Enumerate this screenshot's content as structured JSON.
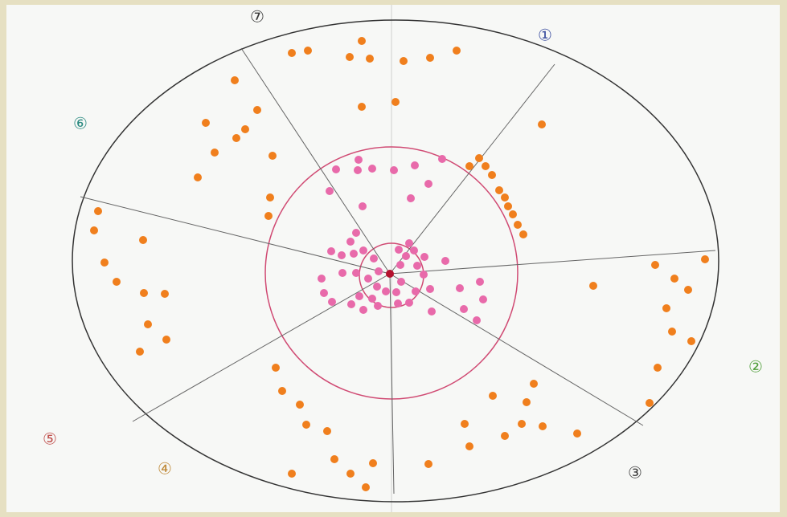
{
  "poster": {
    "section_numbers": [
      "①",
      "②",
      "③",
      "④",
      "⑤",
      "⑥",
      "⑦"
    ]
  }
}
